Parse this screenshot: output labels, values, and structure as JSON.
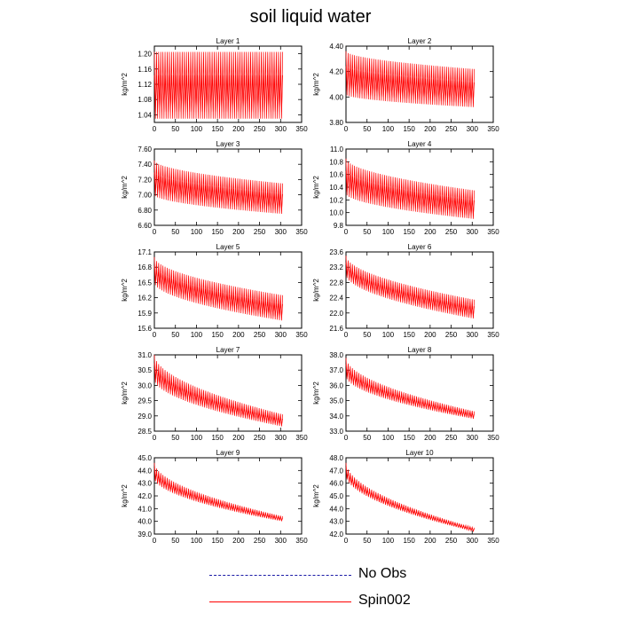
{
  "title": "soil liquid water",
  "colors": {
    "series": "#ff0000",
    "noobs": "#1a1aa6",
    "axis": "#000000"
  },
  "legend": [
    {
      "label": "No Obs",
      "style": "dashed",
      "color": "#1a1aa6"
    },
    {
      "label": "Spin002",
      "style": "solid",
      "color": "#ff0000"
    }
  ],
  "chart_data": [
    {
      "type": "line",
      "title": "Layer 1",
      "xlabel": "",
      "ylabel": "kg/m^2",
      "xlim": [
        0,
        350
      ],
      "xticks": [
        0,
        50,
        100,
        150,
        200,
        250,
        300,
        350
      ],
      "ylim": [
        1.02,
        1.22
      ],
      "yticks": [
        "1.04",
        "1.08",
        "1.12",
        "1.16",
        "1.20"
      ],
      "series": [
        {
          "name": "Spin002",
          "x_range": [
            0,
            305
          ],
          "upper": [
            [
              0,
              1.205
            ],
            [
              305,
              1.205
            ]
          ],
          "lower": [
            [
              0,
              1.03
            ],
            [
              305,
              1.03
            ]
          ]
        }
      ]
    },
    {
      "type": "line",
      "title": "Layer 2",
      "xlabel": "",
      "ylabel": "kg/m^2",
      "xlim": [
        0,
        350
      ],
      "xticks": [
        0,
        50,
        100,
        150,
        200,
        250,
        300,
        350
      ],
      "ylim": [
        3.8,
        4.4
      ],
      "yticks": [
        "3.80",
        "4.00",
        "4.20",
        "4.40"
      ],
      "series": [
        {
          "name": "Spin002",
          "x_range": [
            0,
            305
          ],
          "upper": [
            [
              0,
              4.36
            ],
            [
              305,
              4.22
            ]
          ],
          "lower": [
            [
              0,
              4.02
            ],
            [
              305,
              3.92
            ]
          ]
        }
      ]
    },
    {
      "type": "line",
      "title": "Layer 3",
      "xlabel": "",
      "ylabel": "kg/m^2",
      "xlim": [
        0,
        350
      ],
      "xticks": [
        0,
        50,
        100,
        150,
        200,
        250,
        300,
        350
      ],
      "ylim": [
        6.6,
        7.6
      ],
      "yticks": [
        "6.60",
        "6.80",
        "7.00",
        "7.20",
        "7.40",
        "7.60"
      ],
      "series": [
        {
          "name": "Spin002",
          "x_range": [
            0,
            305
          ],
          "upper": [
            [
              0,
              7.45
            ],
            [
              305,
              7.15
            ]
          ],
          "lower": [
            [
              0,
              7.0
            ],
            [
              305,
              6.75
            ]
          ]
        }
      ]
    },
    {
      "type": "line",
      "title": "Layer 4",
      "xlabel": "",
      "ylabel": "kg/m^2",
      "xlim": [
        0,
        350
      ],
      "xticks": [
        0,
        50,
        100,
        150,
        200,
        250,
        300,
        350
      ],
      "ylim": [
        9.8,
        11.0
      ],
      "yticks": [
        "9.8",
        "10.0",
        "10.2",
        "10.4",
        "10.6",
        "10.8",
        "11.0"
      ],
      "series": [
        {
          "name": "Spin002",
          "x_range": [
            0,
            305
          ],
          "upper": [
            [
              0,
              10.85
            ],
            [
              305,
              10.35
            ]
          ],
          "lower": [
            [
              0,
              10.3
            ],
            [
              305,
              9.9
            ]
          ]
        }
      ]
    },
    {
      "type": "line",
      "title": "Layer 5",
      "xlabel": "",
      "ylabel": "kg/m^2",
      "xlim": [
        0,
        350
      ],
      "xticks": [
        0,
        50,
        100,
        150,
        200,
        250,
        300,
        350
      ],
      "ylim": [
        15.6,
        17.1
      ],
      "yticks": [
        "15.6",
        "15.9",
        "16.2",
        "16.5",
        "16.8",
        "17.1"
      ],
      "series": [
        {
          "name": "Spin002",
          "x_range": [
            0,
            305
          ],
          "upper": [
            [
              0,
              17.0
            ],
            [
              305,
              16.25
            ]
          ],
          "lower": [
            [
              0,
              16.5
            ],
            [
              305,
              15.75
            ]
          ]
        }
      ]
    },
    {
      "type": "line",
      "title": "Layer 6",
      "xlabel": "",
      "ylabel": "kg/m^2",
      "xlim": [
        0,
        350
      ],
      "xticks": [
        0,
        50,
        100,
        150,
        200,
        250,
        300,
        350
      ],
      "ylim": [
        21.6,
        23.6
      ],
      "yticks": [
        "21.6",
        "22.0",
        "22.4",
        "22.8",
        "23.2",
        "23.6"
      ],
      "series": [
        {
          "name": "Spin002",
          "x_range": [
            0,
            305
          ],
          "upper": [
            [
              0,
              23.5
            ],
            [
              305,
              22.35
            ]
          ],
          "lower": [
            [
              0,
              23.0
            ],
            [
              305,
              21.85
            ]
          ]
        }
      ]
    },
    {
      "type": "line",
      "title": "Layer 7",
      "xlabel": "",
      "ylabel": "kg/m^2",
      "xlim": [
        0,
        350
      ],
      "xticks": [
        0,
        50,
        100,
        150,
        200,
        250,
        300,
        350
      ],
      "ylim": [
        28.5,
        31.0
      ],
      "yticks": [
        "28.5",
        "29.0",
        "29.5",
        "30.0",
        "30.5",
        "31.0"
      ],
      "series": [
        {
          "name": "Spin002",
          "x_range": [
            0,
            305
          ],
          "upper": [
            [
              0,
              31.0
            ],
            [
              305,
              29.05
            ]
          ],
          "lower": [
            [
              0,
              30.2
            ],
            [
              305,
              28.65
            ]
          ]
        }
      ]
    },
    {
      "type": "line",
      "title": "Layer 8",
      "xlabel": "",
      "ylabel": "kg/m^2",
      "xlim": [
        0,
        350
      ],
      "xticks": [
        0,
        50,
        100,
        150,
        200,
        250,
        300,
        350
      ],
      "ylim": [
        33.0,
        38.0
      ],
      "yticks": [
        "33.0",
        "34.0",
        "35.0",
        "36.0",
        "37.0",
        "38.0"
      ],
      "series": [
        {
          "name": "Spin002",
          "x_range": [
            0,
            305
          ],
          "upper": [
            [
              0,
              37.8
            ],
            [
              305,
              34.3
            ]
          ],
          "lower": [
            [
              0,
              36.6
            ],
            [
              305,
              33.8
            ]
          ]
        }
      ]
    },
    {
      "type": "line",
      "title": "Layer 9",
      "xlabel": "",
      "ylabel": "kg/m^2",
      "xlim": [
        0,
        350
      ],
      "xticks": [
        0,
        50,
        100,
        150,
        200,
        250,
        300,
        350
      ],
      "ylim": [
        39.0,
        45.0
      ],
      "yticks": [
        "39.0",
        "40.0",
        "41.0",
        "42.0",
        "43.0",
        "44.0",
        "45.0"
      ],
      "series": [
        {
          "name": "Spin002",
          "x_range": [
            0,
            305
          ],
          "upper": [
            [
              0,
              44.6
            ],
            [
              305,
              40.4
            ]
          ],
          "lower": [
            [
              0,
              43.4
            ],
            [
              305,
              40.0
            ]
          ]
        }
      ]
    },
    {
      "type": "line",
      "title": "Layer 10",
      "xlabel": "",
      "ylabel": "kg/m^2",
      "xlim": [
        0,
        350
      ],
      "xticks": [
        0,
        50,
        100,
        150,
        200,
        250,
        300,
        350
      ],
      "ylim": [
        42.0,
        48.0
      ],
      "yticks": [
        "42.0",
        "43.0",
        "44.0",
        "45.0",
        "46.0",
        "47.0",
        "48.0"
      ],
      "series": [
        {
          "name": "Spin002",
          "x_range": [
            0,
            305
          ],
          "upper": [
            [
              0,
              47.6
            ],
            [
              305,
              42.5
            ]
          ],
          "lower": [
            [
              0,
              46.6
            ],
            [
              305,
              42.2
            ]
          ]
        }
      ]
    }
  ]
}
